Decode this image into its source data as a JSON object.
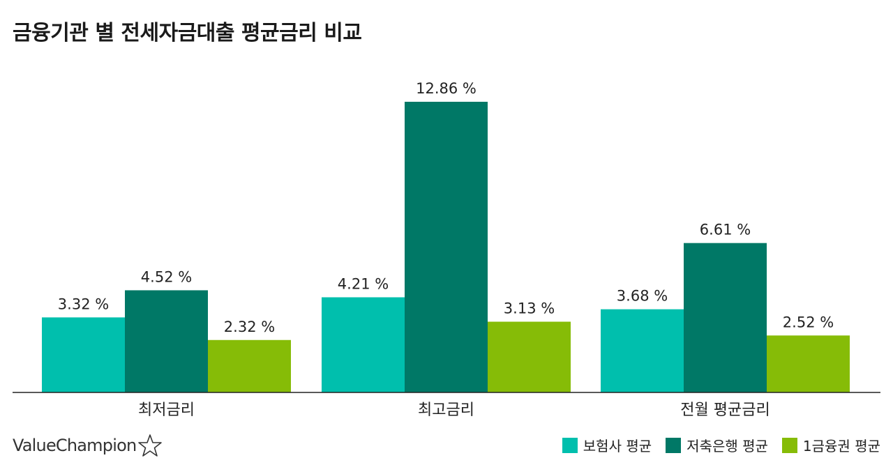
{
  "title": "금융기관 별 전세자금대출 평균금리 비교",
  "brand": "ValueChampion",
  "chart_data": {
    "type": "bar",
    "categories": [
      "최저금리",
      "최고금리",
      "전월 평균금리"
    ],
    "series": [
      {
        "name": "보험사 평균",
        "values": [
          3.32,
          4.21,
          3.68
        ],
        "labels": [
          "3.32 %",
          "4.21 %",
          "3.68 %"
        ],
        "color": "#00bfad"
      },
      {
        "name": "저축은행 평균",
        "values": [
          4.52,
          12.86,
          6.61
        ],
        "labels": [
          "4.52 %",
          "12.86 %",
          "6.61 %"
        ],
        "color": "#007866"
      },
      {
        "name": "1금융권 평균",
        "values": [
          2.32,
          3.13,
          2.52
        ],
        "labels": [
          "2.32 %",
          "3.13 %",
          "2.52 %"
        ],
        "color": "#86bc07"
      }
    ],
    "ylim": [
      0,
      14.5
    ],
    "grid": false,
    "legend": "bottom-right"
  }
}
